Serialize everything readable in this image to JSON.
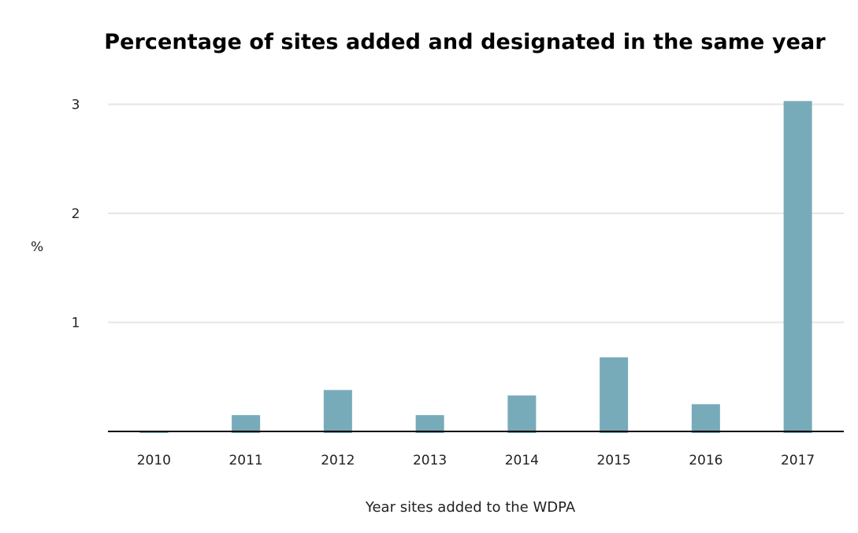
{
  "chart_data": {
    "type": "bar",
    "title": "Percentage of sites added and designated in the same year",
    "xlabel": "Year sites added to the WDPA",
    "ylabel": "%",
    "categories": [
      "2010",
      "2011",
      "2012",
      "2013",
      "2014",
      "2015",
      "2016",
      "2017"
    ],
    "values": [
      0.0,
      0.15,
      0.38,
      0.15,
      0.33,
      0.68,
      0.25,
      3.03
    ],
    "ylim": [
      0,
      3
    ],
    "yticks": [
      "1",
      "2",
      "3"
    ],
    "grid": true,
    "legend": "none",
    "bar_color": "#78abb9",
    "grid_color": "#e6e6e6",
    "axis_color": "#000000"
  }
}
